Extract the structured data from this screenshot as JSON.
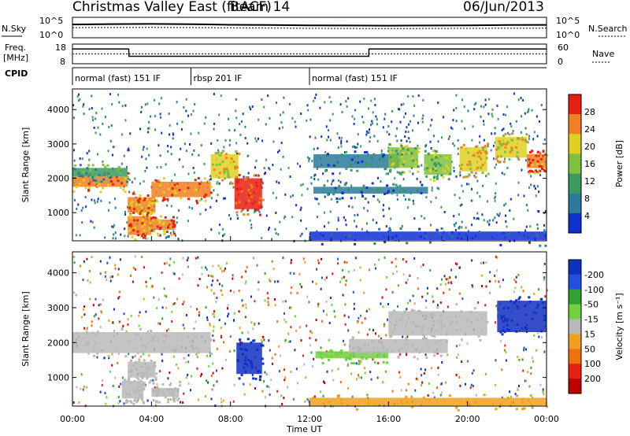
{
  "header": {
    "station": "Christmas Valley East (fitACF)",
    "beam": "Beam 14",
    "date": "06/Jun/2013"
  },
  "side_labels": {
    "nsky": "N.Sky",
    "nsearch": "N.Search",
    "freq_line1": "Freq.",
    "freq_line2": "[MHz]",
    "nave": "Nave",
    "cpid": "CPID"
  },
  "chart_data": [
    {
      "type": "line",
      "name": "noise",
      "yticks_left": [
        "10^5",
        "10^0"
      ],
      "yticks_right": [
        "10^5",
        "10^0"
      ],
      "series": [
        {
          "name": "N.Sky",
          "x": [
            0,
            2,
            4,
            6,
            8,
            10,
            12,
            14,
            16,
            18,
            20,
            22,
            24
          ],
          "values": [
            1800,
            2200,
            2400,
            2100,
            1500,
            1300,
            1100,
            1000,
            900,
            1000,
            1100,
            1300,
            1400
          ]
        },
        {
          "name": "N.Search",
          "x": [
            0,
            4,
            8,
            12,
            16,
            20,
            24
          ],
          "values": [
            300,
            350,
            280,
            200,
            180,
            200,
            220
          ]
        }
      ],
      "ylim": [
        1,
        100000
      ],
      "scale": "log"
    },
    {
      "type": "line",
      "name": "frequency",
      "yticks_left": [
        "18",
        "8"
      ],
      "yticks_right": [
        "60",
        "0"
      ],
      "series": [
        {
          "name": "Freq",
          "x": [
            0,
            2.85,
            2.86,
            15,
            15.01,
            24
          ],
          "values": [
            15.5,
            15.5,
            11.8,
            11.8,
            15.5,
            15.5
          ]
        },
        {
          "name": "Nave",
          "x": [
            0,
            24
          ],
          "values": [
            30,
            30
          ]
        }
      ],
      "ylim_left": [
        8,
        18
      ],
      "ylim_right": [
        0,
        60
      ]
    },
    {
      "type": "table",
      "name": "cpid",
      "segments": [
        {
          "label": "normal (fast) 151 IF",
          "start": 0,
          "end": 6
        },
        {
          "label": "rbsp 201 IF",
          "start": 6,
          "end": 12
        },
        {
          "label": "normal (fast) 151 IF",
          "start": 12,
          "end": 24
        }
      ]
    },
    {
      "type": "heatmap",
      "name": "power",
      "ylabel": "Slant Range [km]",
      "yticks": [
        1000,
        2000,
        3000,
        4000
      ],
      "ylim": [
        180,
        4600
      ],
      "xlim": [
        0,
        24
      ],
      "colorbar_label": "Power [dB]",
      "colorbar_ticks": [
        4,
        8,
        12,
        16,
        20,
        24,
        28
      ],
      "colorbar_colors": [
        "#1030d0",
        "#2a7a9a",
        "#3a9a60",
        "#80c040",
        "#e0d020",
        "#f08020",
        "#e82010"
      ],
      "patches": [
        {
          "x0": 0,
          "x1": 2.8,
          "y0": 1750,
          "y1": 2050,
          "level": 5
        },
        {
          "x0": 0,
          "x1": 2.8,
          "y0": 2050,
          "y1": 2300,
          "level": 2
        },
        {
          "x0": 2.8,
          "x1": 4.2,
          "y0": 1000,
          "y1": 1450,
          "level": 5
        },
        {
          "x0": 2.8,
          "x1": 4.0,
          "y0": 350,
          "y1": 900,
          "level": 5
        },
        {
          "x0": 4,
          "x1": 7,
          "y0": 1450,
          "y1": 1900,
          "level": 5
        },
        {
          "x0": 7,
          "x1": 8.4,
          "y0": 2000,
          "y1": 2700,
          "level": 4
        },
        {
          "x0": 8.2,
          "x1": 9.6,
          "y0": 1100,
          "y1": 2000,
          "level": 6
        },
        {
          "x0": 3.8,
          "x1": 5.2,
          "y0": 500,
          "y1": 800,
          "level": 5
        },
        {
          "x0": 12.2,
          "x1": 18,
          "y0": 1550,
          "y1": 1750,
          "level": 1
        },
        {
          "x0": 17.8,
          "x1": 19.2,
          "y0": 2100,
          "y1": 2700,
          "level": 3
        },
        {
          "x0": 19.6,
          "x1": 21,
          "y0": 2200,
          "y1": 2900,
          "level": 4
        },
        {
          "x0": 21.4,
          "x1": 23,
          "y0": 2600,
          "y1": 3200,
          "level": 4
        },
        {
          "x0": 23,
          "x1": 24,
          "y0": 2300,
          "y1": 2700,
          "level": 5
        },
        {
          "x0": 12,
          "x1": 24,
          "y0": 200,
          "y1": 450,
          "level": 0
        },
        {
          "x0": 12.2,
          "x1": 16.5,
          "y0": 2300,
          "y1": 2700,
          "level": 1
        },
        {
          "x0": 16,
          "x1": 17.5,
          "y0": 2300,
          "y1": 2900,
          "level": 3
        }
      ]
    },
    {
      "type": "heatmap",
      "name": "velocity",
      "ylabel": "Slant Range [km]",
      "yticks": [
        1000,
        2000,
        3000,
        4000
      ],
      "ylim": [
        180,
        4600
      ],
      "xlim": [
        0,
        24
      ],
      "xticks": [
        "00:00",
        "04:00",
        "08:00",
        "12:00",
        "16:00",
        "20:00",
        "00:00"
      ],
      "xlabel": "Time UT",
      "colorbar_label": "Velocity [m s⁻¹]",
      "colorbar_ticks": [
        "200",
        "100",
        "50",
        "15",
        "-15",
        "-50",
        "-100",
        "-200"
      ],
      "colorbar_colors": [
        "#1030c0",
        "#2050e0",
        "#30a030",
        "#70d040",
        "#b8b8b8",
        "#f0a020",
        "#f07010",
        "#e82010",
        "#c00000"
      ],
      "patches": [
        {
          "x0": 0,
          "x1": 7,
          "y0": 1700,
          "y1": 2300,
          "color": "#b8b8b8"
        },
        {
          "x0": 2.8,
          "x1": 4.2,
          "y0": 1000,
          "y1": 1450,
          "color": "#b8b8b8"
        },
        {
          "x0": 2.5,
          "x1": 3.6,
          "y0": 400,
          "y1": 900,
          "color": "#b8b8b8"
        },
        {
          "x0": 4,
          "x1": 5.4,
          "y0": 450,
          "y1": 700,
          "color": "#b8b8b8"
        },
        {
          "x0": 8.3,
          "x1": 9.6,
          "y0": 1100,
          "y1": 2000,
          "color": "#1030c0"
        },
        {
          "x0": 12.3,
          "x1": 16,
          "y0": 1550,
          "y1": 1750,
          "color": "#70d040"
        },
        {
          "x0": 12,
          "x1": 24,
          "y0": 200,
          "y1": 420,
          "color": "#f0a020"
        },
        {
          "x0": 16,
          "x1": 21,
          "y0": 2200,
          "y1": 2900,
          "color": "#b8b8b8"
        },
        {
          "x0": 21.5,
          "x1": 24,
          "y0": 2300,
          "y1": 3200,
          "color": "#1030c0"
        },
        {
          "x0": 14,
          "x1": 19,
          "y0": 1700,
          "y1": 2100,
          "color": "#b8b8b8"
        }
      ]
    }
  ]
}
